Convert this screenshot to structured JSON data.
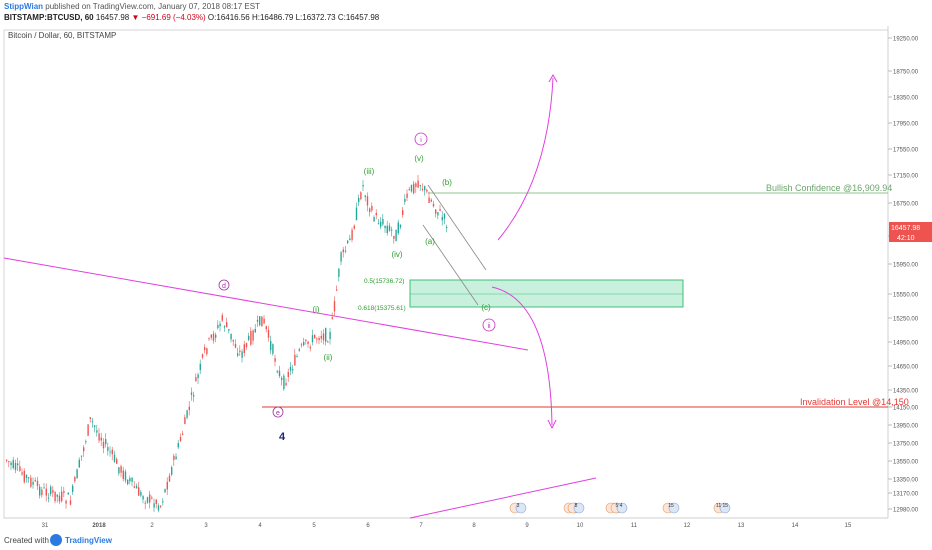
{
  "header": {
    "publisher": "StippWian",
    "published_text": "published on TradingView.com, January 07, 2018 08:17 EST",
    "symbol": "BITSTAMP:BTCUSD, 60",
    "last": "16457.98",
    "change": "−691.69 (−4.03%)",
    "open": "O:16416.56",
    "high": "H:16486.79",
    "low": "L:16372.73",
    "close": "C:16457.98"
  },
  "chart_title": "Bitcoin / Dollar, 60, BITSTAMP",
  "footer": {
    "created_with": "Created with",
    "brand": "TradingView"
  },
  "colors": {
    "up": "#26a69a",
    "down": "#ef5350",
    "magenta": "#e040e0",
    "green_label": "#2e9e2e",
    "invalidation": "#e53935",
    "confidence": "#7cb87c",
    "zone": "#c8f0dc"
  },
  "price_axis": [
    "19250.00",
    "18750.00",
    "18350.00",
    "17950.00",
    "17550.00",
    "17150.00",
    "16750.00",
    "16350.00",
    "15950.00",
    "15550.00",
    "15250.00",
    "14950.00",
    "14650.00",
    "14350.00",
    "14150.00",
    "13950.00",
    "13750.00",
    "13550.00",
    "13350.00",
    "13170.00",
    "12980.00"
  ],
  "current_price_tag": "16457.98",
  "current_time_tag": "42:10",
  "time_axis": [
    "31",
    "2018",
    "2",
    "3",
    "4",
    "5",
    "6",
    "7",
    "8",
    "9",
    "10",
    "11",
    "12",
    "13",
    "14",
    "15"
  ],
  "annotations": {
    "bullish_confidence": "Bullish Confidence @16,909.94",
    "invalidation": "Invalidation Level @14,150",
    "fib_05": "0.5(15736.72)",
    "fib_0618": "0.618(15375.61)",
    "wave_d": "d",
    "wave_e": "e",
    "wave_4": "4",
    "wave_i_circle": "i",
    "wave_ii_circle": "ii",
    "wave_i": "(i)",
    "wave_ii": "(ii)",
    "wave_iii": "(iii)",
    "wave_iv": "(iv)",
    "wave_v": "(v)",
    "wave_a": "(a)",
    "wave_b": "(b)",
    "wave_c": "(c)"
  },
  "events": [
    {
      "label": "3"
    },
    {
      "label": "2"
    },
    {
      "label": "8"
    },
    {
      "label": "3"
    },
    {
      "label": "5 4"
    },
    {
      "label": "15"
    },
    {
      "label": "11 15"
    }
  ]
}
